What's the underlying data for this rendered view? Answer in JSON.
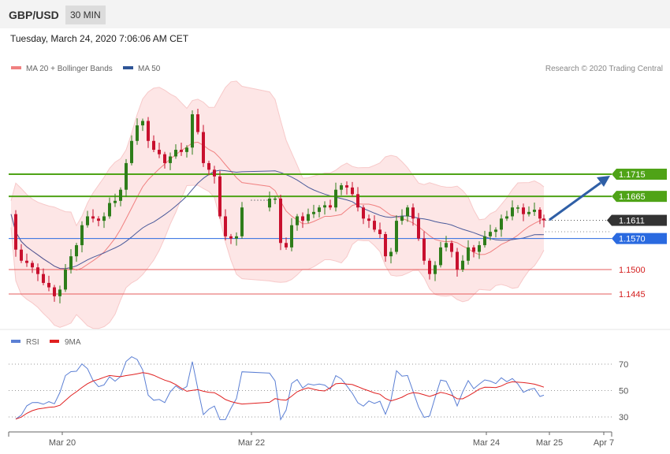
{
  "header": {
    "pair": "GBP/USD",
    "timeframe": "30 MIN",
    "datetime": "Tuesday, March 24, 2020 7:06:06 AM CET"
  },
  "legend": {
    "items": [
      {
        "label": "MA 20 + Bollinger Bands",
        "color": "#f08080"
      },
      {
        "label": "MA 50",
        "color": "#2f5597"
      }
    ],
    "credit": "Research © 2020 Trading Central"
  },
  "chart_data": {
    "type": "candlestick",
    "y_range": [
      1.1338,
      1.1893
    ],
    "current_price": "1.1611",
    "price_levels": [
      {
        "value": 1.1715,
        "label": "1.1715",
        "kind": "resistance",
        "color": "#4fa317"
      },
      {
        "value": 1.1665,
        "label": "1.1665",
        "kind": "resistance",
        "color": "#4fa317"
      },
      {
        "value": 1.157,
        "label": "1.1570",
        "kind": "pivot",
        "color": "#2a6ae0"
      },
      {
        "value": 1.15,
        "label": "1.1500",
        "kind": "support",
        "color": "#e65c5c"
      },
      {
        "value": 1.1445,
        "label": "1.1445",
        "kind": "support",
        "color": "#e65c5c"
      }
    ],
    "forecast_target": 1.1715,
    "x_ticks": [
      "Mar 20",
      "Mar 22",
      "Mar 24",
      "Mar 25",
      "Apr 7"
    ],
    "rsi": {
      "series": [
        {
          "name": "RSI",
          "color": "#5b7fd4"
        },
        {
          "name": "9MA",
          "color": "#e02020"
        }
      ],
      "levels": [
        70,
        50,
        30
      ]
    }
  }
}
